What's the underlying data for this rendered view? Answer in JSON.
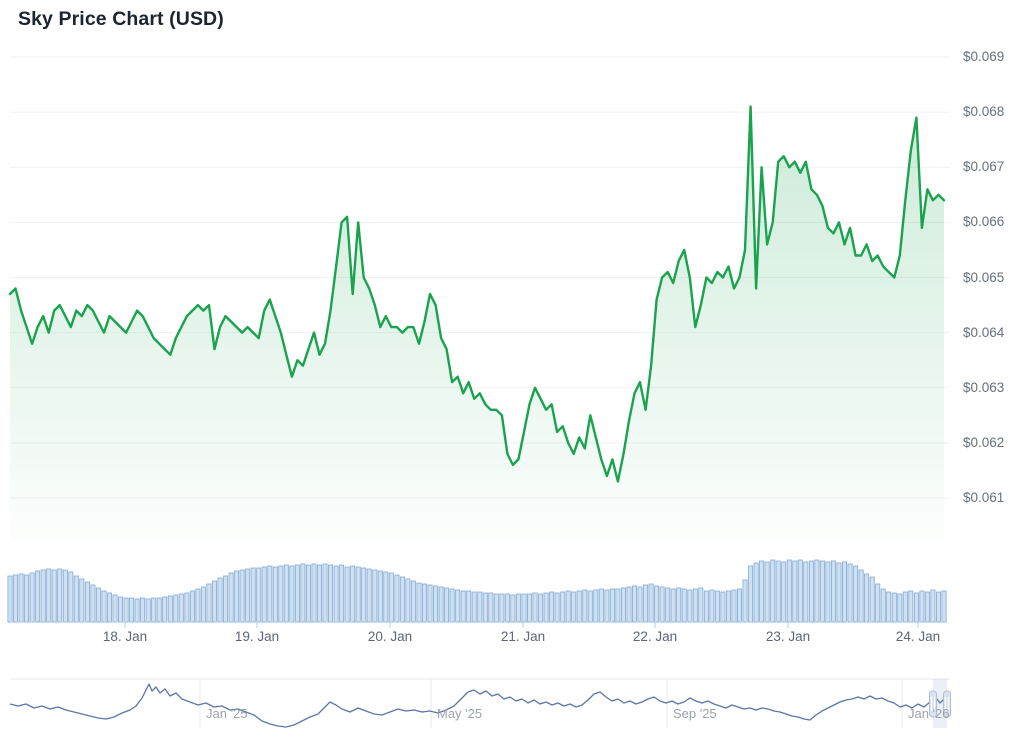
{
  "header": {
    "title": "Sky Price Chart (USD)"
  },
  "colors": {
    "price_line": "#1aa34f",
    "price_fill_top": "rgba(26,163,79,0.22)",
    "price_fill_bottom": "rgba(26,163,79,0.01)",
    "grid_line": "#eff1f3",
    "volume_fill": "#cfe0f1",
    "volume_stroke": "#83abd5",
    "axis_dotted_line": "#b5d0ea",
    "navigator_line": "#5b76a8",
    "navigator_grid": "#e7e9ec",
    "selection_fill": "rgba(101,131,183,0.12)",
    "handle_fill": "#dbe3ef",
    "handle_stroke": "#b0bfd6",
    "title_color": "#1c2430",
    "tick_color": "#66707e"
  },
  "chart_data": {
    "type": "line",
    "title": "Sky Price Chart (USD)",
    "currency": "USD",
    "y_axis": {
      "ticks": [
        "$0.069",
        "$0.068",
        "$0.067",
        "$0.066",
        "$0.065",
        "$0.064",
        "$0.063",
        "$0.062",
        "$0.061"
      ],
      "tick_values": [
        0.069,
        0.068,
        0.067,
        0.066,
        0.065,
        0.064,
        0.063,
        0.062,
        0.061
      ],
      "min": 0.061,
      "max": 0.069,
      "grid": "horizontal-only",
      "position": "right"
    },
    "x_axis": {
      "ticks": [
        "18. Jan",
        "19. Jan",
        "20. Jan",
        "21. Jan",
        "22. Jan",
        "23. Jan",
        "24. Jan"
      ],
      "interval": "hourly",
      "span": "17 Jan - 24 Jan"
    },
    "price_series": [
      0.0647,
      0.0648,
      0.0644,
      0.0641,
      0.0638,
      0.0641,
      0.0643,
      0.064,
      0.0644,
      0.0645,
      0.0643,
      0.0641,
      0.0644,
      0.0643,
      0.0645,
      0.0644,
      0.0642,
      0.064,
      0.0643,
      0.0642,
      0.0641,
      0.064,
      0.0642,
      0.0644,
      0.0643,
      0.0641,
      0.0639,
      0.0638,
      0.0637,
      0.0636,
      0.0639,
      0.0641,
      0.0643,
      0.0644,
      0.0645,
      0.0644,
      0.0645,
      0.0637,
      0.0641,
      0.0643,
      0.0642,
      0.0641,
      0.064,
      0.0641,
      0.064,
      0.0639,
      0.0644,
      0.0646,
      0.0643,
      0.064,
      0.0636,
      0.0632,
      0.0635,
      0.0634,
      0.0637,
      0.064,
      0.0636,
      0.0638,
      0.0644,
      0.0652,
      0.066,
      0.0661,
      0.0647,
      0.066,
      0.065,
      0.0648,
      0.0645,
      0.0641,
      0.0643,
      0.0641,
      0.0641,
      0.064,
      0.0641,
      0.0641,
      0.0638,
      0.0642,
      0.0647,
      0.0645,
      0.0639,
      0.0637,
      0.0631,
      0.0632,
      0.0629,
      0.0631,
      0.0628,
      0.0629,
      0.0627,
      0.0626,
      0.0626,
      0.0625,
      0.0618,
      0.0616,
      0.0617,
      0.0622,
      0.0627,
      0.063,
      0.0628,
      0.0626,
      0.0627,
      0.0622,
      0.0623,
      0.062,
      0.0618,
      0.0621,
      0.0619,
      0.0625,
      0.0621,
      0.0617,
      0.0614,
      0.0617,
      0.0613,
      0.0618,
      0.0624,
      0.0629,
      0.0631,
      0.0626,
      0.0634,
      0.0646,
      0.065,
      0.0651,
      0.0649,
      0.0653,
      0.0655,
      0.065,
      0.0641,
      0.0645,
      0.065,
      0.0649,
      0.0651,
      0.065,
      0.0652,
      0.0648,
      0.065,
      0.0655,
      0.0681,
      0.0648,
      0.067,
      0.0656,
      0.066,
      0.0671,
      0.0672,
      0.067,
      0.0671,
      0.0669,
      0.0671,
      0.0666,
      0.0665,
      0.0663,
      0.0659,
      0.0658,
      0.066,
      0.0656,
      0.0659,
      0.0654,
      0.0654,
      0.0656,
      0.0653,
      0.0654,
      0.0652,
      0.0651,
      0.065,
      0.0654,
      0.0664,
      0.0673,
      0.0679,
      0.0659,
      0.0666,
      0.0664,
      0.0665,
      0.0664
    ],
    "volume_series_relative": [
      46,
      47,
      48,
      47,
      49,
      51,
      52,
      53,
      52,
      53,
      52,
      50,
      46,
      43,
      40,
      37,
      34,
      31,
      29,
      27,
      25,
      24,
      24,
      23,
      24,
      23,
      24,
      24,
      25,
      26,
      27,
      28,
      29,
      31,
      33,
      35,
      38,
      41,
      44,
      46,
      49,
      51,
      52,
      53,
      54,
      54,
      55,
      56,
      55,
      56,
      57,
      56,
      57,
      58,
      57,
      58,
      57,
      58,
      57,
      56,
      57,
      55,
      56,
      55,
      54,
      53,
      52,
      51,
      50,
      49,
      47,
      45,
      43,
      41,
      39,
      38,
      37,
      36,
      35,
      34,
      33,
      32,
      31,
      31,
      30,
      30,
      29,
      29,
      28,
      28,
      28,
      27,
      28,
      28,
      28,
      29,
      28,
      29,
      30,
      29,
      30,
      31,
      30,
      31,
      32,
      31,
      32,
      33,
      32,
      33,
      33,
      34,
      35,
      36,
      35,
      37,
      38,
      36,
      35,
      34,
      33,
      34,
      33,
      32,
      33,
      34,
      31,
      32,
      31,
      30,
      31,
      32,
      33,
      42,
      56,
      59,
      61,
      60,
      62,
      61,
      60,
      62,
      61,
      62,
      60,
      61,
      62,
      61,
      60,
      61,
      59,
      60,
      58,
      56,
      52,
      48,
      45,
      38,
      33,
      30,
      29,
      28,
      30,
      31,
      29,
      31,
      30,
      32,
      30,
      31
    ],
    "navigator": {
      "x_ticks": [
        "Jan '25",
        "May '25",
        "Sep '25",
        "Jan '26"
      ],
      "selected_range": "right edge (late Jan '26)",
      "points": [
        [
          10,
          704
        ],
        [
          18,
          706
        ],
        [
          26,
          704
        ],
        [
          34,
          708
        ],
        [
          42,
          706
        ],
        [
          50,
          709
        ],
        [
          58,
          707
        ],
        [
          66,
          710
        ],
        [
          74,
          712
        ],
        [
          82,
          714
        ],
        [
          90,
          716
        ],
        [
          98,
          718
        ],
        [
          106,
          719
        ],
        [
          114,
          717
        ],
        [
          122,
          713
        ],
        [
          130,
          710
        ],
        [
          136,
          706
        ],
        [
          142,
          698
        ],
        [
          146,
          690
        ],
        [
          149,
          684
        ],
        [
          152,
          691
        ],
        [
          156,
          687
        ],
        [
          160,
          693
        ],
        [
          165,
          689
        ],
        [
          170,
          696
        ],
        [
          176,
          693
        ],
        [
          182,
          699
        ],
        [
          190,
          702
        ],
        [
          198,
          705
        ],
        [
          206,
          703
        ],
        [
          214,
          707
        ],
        [
          222,
          706
        ],
        [
          230,
          710
        ],
        [
          238,
          709
        ],
        [
          246,
          712
        ],
        [
          254,
          715
        ],
        [
          262,
          721
        ],
        [
          270,
          724
        ],
        [
          278,
          726
        ],
        [
          286,
          727
        ],
        [
          294,
          725
        ],
        [
          302,
          721
        ],
        [
          310,
          717
        ],
        [
          318,
          714
        ],
        [
          324,
          708
        ],
        [
          330,
          702
        ],
        [
          336,
          705
        ],
        [
          342,
          709
        ],
        [
          350,
          712
        ],
        [
          358,
          708
        ],
        [
          366,
          711
        ],
        [
          374,
          714
        ],
        [
          382,
          715
        ],
        [
          390,
          712
        ],
        [
          398,
          709
        ],
        [
          406,
          711
        ],
        [
          414,
          710
        ],
        [
          422,
          712
        ],
        [
          430,
          711
        ],
        [
          438,
          713
        ],
        [
          446,
          710
        ],
        [
          454,
          706
        ],
        [
          462,
          698
        ],
        [
          468,
          692
        ],
        [
          474,
          690
        ],
        [
          480,
          694
        ],
        [
          486,
          691
        ],
        [
          492,
          696
        ],
        [
          498,
          694
        ],
        [
          504,
          699
        ],
        [
          510,
          697
        ],
        [
          516,
          701
        ],
        [
          522,
          699
        ],
        [
          528,
          703
        ],
        [
          534,
          700
        ],
        [
          540,
          704
        ],
        [
          546,
          702
        ],
        [
          552,
          705
        ],
        [
          558,
          703
        ],
        [
          564,
          706
        ],
        [
          570,
          704
        ],
        [
          576,
          707
        ],
        [
          582,
          705
        ],
        [
          588,
          700
        ],
        [
          594,
          694
        ],
        [
          600,
          692
        ],
        [
          606,
          697
        ],
        [
          612,
          701
        ],
        [
          618,
          699
        ],
        [
          624,
          703
        ],
        [
          630,
          701
        ],
        [
          636,
          704
        ],
        [
          642,
          702
        ],
        [
          648,
          699
        ],
        [
          654,
          697
        ],
        [
          660,
          701
        ],
        [
          666,
          703
        ],
        [
          672,
          701
        ],
        [
          678,
          704
        ],
        [
          684,
          702
        ],
        [
          690,
          698
        ],
        [
          696,
          701
        ],
        [
          702,
          703
        ],
        [
          708,
          701
        ],
        [
          714,
          704
        ],
        [
          720,
          706
        ],
        [
          726,
          708
        ],
        [
          732,
          705
        ],
        [
          738,
          707
        ],
        [
          744,
          709
        ],
        [
          750,
          708
        ],
        [
          756,
          710
        ],
        [
          762,
          708
        ],
        [
          768,
          709
        ],
        [
          774,
          711
        ],
        [
          780,
          712
        ],
        [
          786,
          714
        ],
        [
          792,
          716
        ],
        [
          798,
          717
        ],
        [
          804,
          719
        ],
        [
          810,
          720
        ],
        [
          816,
          715
        ],
        [
          822,
          711
        ],
        [
          828,
          708
        ],
        [
          834,
          705
        ],
        [
          840,
          702
        ],
        [
          846,
          700
        ],
        [
          852,
          699
        ],
        [
          858,
          697
        ],
        [
          864,
          699
        ],
        [
          870,
          696
        ],
        [
          876,
          699
        ],
        [
          882,
          698
        ],
        [
          888,
          701
        ],
        [
          894,
          703
        ],
        [
          900,
          707
        ],
        [
          906,
          705
        ],
        [
          912,
          708
        ],
        [
          918,
          704
        ],
        [
          924,
          707
        ],
        [
          930,
          702
        ],
        [
          936,
          698
        ],
        [
          940,
          703
        ],
        [
          944,
          699
        ],
        [
          948,
          701
        ]
      ]
    }
  }
}
